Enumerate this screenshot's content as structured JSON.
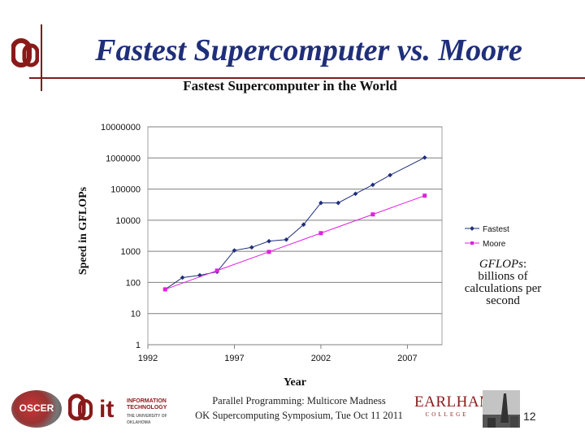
{
  "slide": {
    "title": "Fastest Supercomputer vs. Moore",
    "gflops_term": "GFLOPs",
    "gflops_colon": ":",
    "gflops_definition": "billions of calculations per second",
    "footer_line1": "Parallel Programming: Multicore Madness",
    "footer_line2": "OK Supercomputing Symposium, Tue Oct 11 2011",
    "page_number": "12",
    "logos": {
      "oscer": "OSCER",
      "it_mark": "it",
      "it_text": "INFORMATION TECHNOLOGY",
      "it_subtext": "THE UNIVERSITY OF OKLAHOMA",
      "earlham_name": "EARLHAM",
      "earlham_sub": "COLLEGE"
    }
  },
  "chart_data": {
    "type": "line",
    "title": "Fastest Supercomputer in the World",
    "xlabel": "Year",
    "ylabel": "Speed in GFLOPs",
    "y_scale": "log",
    "xlim": [
      1992,
      2009
    ],
    "ylim": [
      1,
      10000000
    ],
    "x_ticks": [
      "1992",
      "1997",
      "2002",
      "2007"
    ],
    "x_tick_values": [
      1992,
      1997,
      2002,
      2007
    ],
    "y_ticks": [
      "1",
      "10",
      "100",
      "1000",
      "10000",
      "100000",
      "1000000",
      "10000000"
    ],
    "y_tick_values": [
      1,
      10,
      100,
      1000,
      10000,
      100000,
      1000000,
      10000000
    ],
    "grid": "horizontal",
    "legend_position": "right",
    "series": [
      {
        "name": "Fastest",
        "color": "#1f2f7a",
        "marker": "diamond",
        "points": [
          [
            1993,
            60
          ],
          [
            1994,
            143
          ],
          [
            1995,
            170
          ],
          [
            1996,
            220
          ],
          [
            1997,
            1068
          ],
          [
            1998,
            1338
          ],
          [
            1999,
            2121
          ],
          [
            2000,
            2379
          ],
          [
            2001,
            7226
          ],
          [
            2002,
            35860
          ],
          [
            2003,
            35860
          ],
          [
            2004,
            70720
          ],
          [
            2005,
            136800
          ],
          [
            2006,
            280600
          ],
          [
            2008,
            1026000
          ]
        ]
      },
      {
        "name": "Moore",
        "color": "#e020e0",
        "marker": "square",
        "points": [
          [
            1993,
            60
          ],
          [
            1996,
            240
          ],
          [
            1999,
            960
          ],
          [
            2002,
            3840
          ],
          [
            2005,
            15360
          ],
          [
            2008,
            61440
          ]
        ]
      }
    ]
  }
}
